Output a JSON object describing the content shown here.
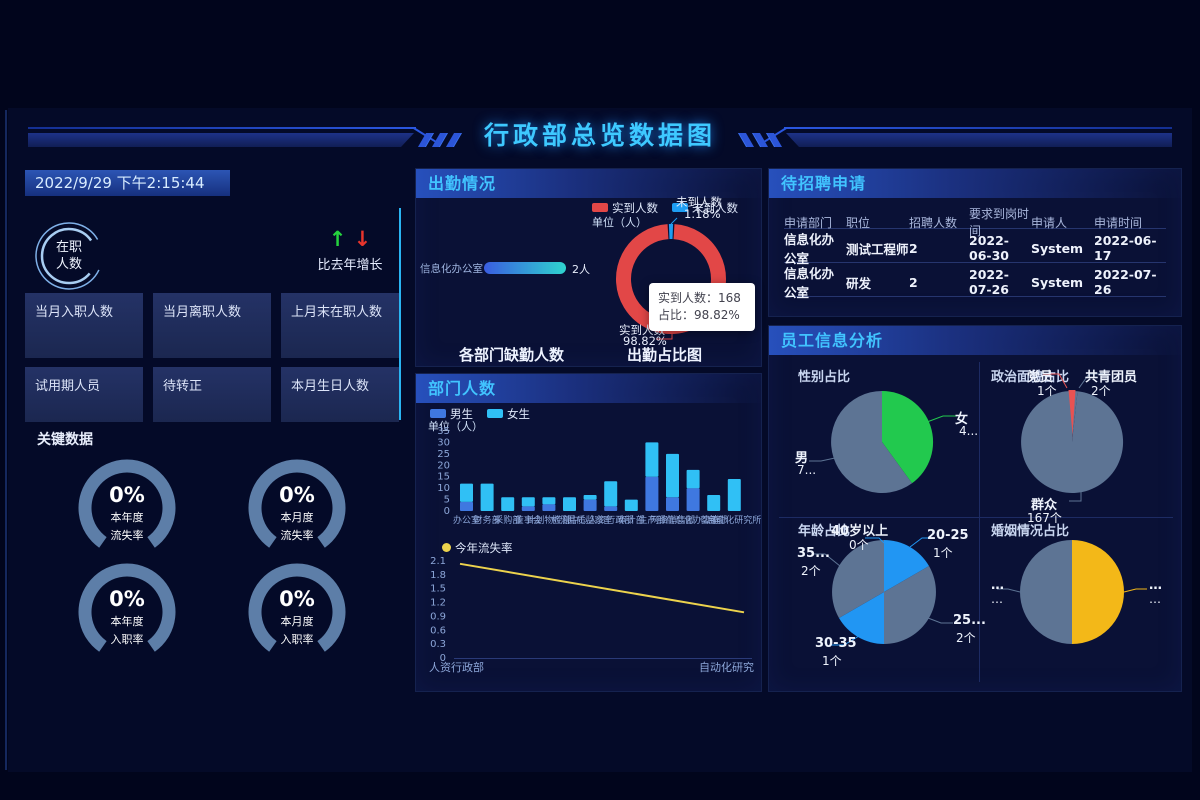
{
  "page": {
    "main_title": "行政部总览数据图"
  },
  "theme": {
    "accent_cyan": "#41c4ff",
    "gauge_arc": "#5d7ea8",
    "axis_text": "#8ca6d8",
    "up_green": "#25d33e",
    "down_red": "#e8342c"
  },
  "left_panel": {
    "datetime": "2022/9/29 下午2:15:44",
    "onduty_label": [
      "在职",
      "人数"
    ],
    "growth": {
      "up_arrow": "↑",
      "down_arrow": "↓",
      "label": "比去年增长"
    },
    "stat_cards": [
      "当月入职人数",
      "当月离职人数",
      "上月末在职人数",
      "试用期人员",
      "待转正",
      "本月生日人数"
    ],
    "key_data_heading": "关键数据",
    "gauges": [
      {
        "value": "0%",
        "period": "本年度",
        "metric": "流失率"
      },
      {
        "value": "0%",
        "period": "本月度",
        "metric": "流失率"
      },
      {
        "value": "0%",
        "period": "本年度",
        "metric": "入职率"
      },
      {
        "value": "0%",
        "period": "本月度",
        "metric": "入职率"
      }
    ]
  },
  "attendance_panel": {
    "title": "出勤情况",
    "unit_label": "单位（人）",
    "legend": [
      {
        "label": "实到人数",
        "color": "#e24747"
      },
      {
        "label": "未到人数",
        "color": "#1e9df2"
      }
    ],
    "bar_dept": "信息化办公室",
    "bar_value": "2人",
    "donut_labels": {
      "absent": "未到人数",
      "absent_pct": "1.18%",
      "present": "实到人数",
      "present_pct": "98.82%"
    },
    "tooltip": {
      "line1": "实到人数：168",
      "line2": "占比：98.82%"
    },
    "caption_left": "各部门缺勤人数",
    "caption_right": "出勤占比图"
  },
  "department_panel": {
    "title": "部门人数",
    "unit_label": "单位（人）",
    "legend": [
      {
        "label": "男生",
        "color": "#3f78e0"
      },
      {
        "label": "女生",
        "color": "#30c0f5"
      }
    ],
    "line_legend": "今年流失率"
  },
  "recruitment_panel": {
    "title": "待招聘申请",
    "columns": [
      "申请部门",
      "职位",
      "招聘人数",
      "要求到岗时间",
      "申请人",
      "申请时间"
    ],
    "rows": [
      [
        "信息化办公室",
        "测试工程师",
        "2",
        "2022-06-30",
        "System",
        "2022-06-17"
      ],
      [
        "信息化办公室",
        "研发",
        "2",
        "2022-07-26",
        "System",
        "2022-07-26"
      ]
    ]
  },
  "employee_panel": {
    "title": "员工信息分析",
    "quadrants": {
      "gender": {
        "title": "性别占比",
        "labels": [
          {
            "name": "女",
            "value": "4..."
          },
          {
            "name": "男",
            "value": "7..."
          }
        ]
      },
      "political": {
        "title": "政治面貌占比",
        "labels": [
          {
            "name": "党员",
            "value": "1个"
          },
          {
            "name": "共青团员",
            "value": "2个"
          },
          {
            "name": "群众",
            "value": "167个"
          }
        ]
      },
      "age": {
        "title": "年龄占比",
        "labels": [
          {
            "name": "40岁以上",
            "value": "0个"
          },
          {
            "name": "20-25",
            "value": "1个"
          },
          {
            "name": "25...",
            "value": "2个"
          },
          {
            "name": "30-35",
            "value": "1个"
          },
          {
            "name": "35...",
            "value": "2个"
          }
        ]
      },
      "marital": {
        "title": "婚姻情况占比",
        "labels": [
          {
            "name": "…",
            "value": "…"
          },
          {
            "name": "…",
            "value": "…"
          }
        ]
      }
    }
  },
  "chart_data": [
    {
      "id": "absence_bar",
      "type": "bar",
      "title": "各部门缺勤人数",
      "unit": "单位（人）",
      "categories": [
        "信息化办公室"
      ],
      "values": [
        2
      ],
      "value_labels": [
        "2人"
      ],
      "xlim": [
        0,
        8
      ],
      "bar_color_start": "#3a5de0",
      "bar_color_end": "#2fd4cf"
    },
    {
      "id": "attendance_donut",
      "type": "pie",
      "title": "出勤占比图",
      "slices": [
        {
          "name": "实到人数",
          "count": 168,
          "pct": 98.82,
          "color": "#e24747"
        },
        {
          "name": "未到人数",
          "pct": 1.18,
          "color": "#1e9df2"
        }
      ]
    },
    {
      "id": "department_stacked_bar",
      "type": "bar",
      "stacked": true,
      "title": "部门人数",
      "unit": "单位（人）",
      "categories": [
        "办公室",
        "财务部",
        "采购部",
        "董事会",
        "计划物控部",
        "检测中心",
        "品质监察室",
        "人资行政部",
        "审计部",
        "生产部",
        "网络销售部",
        "信息化办公室",
        "营销部",
        "自动化研究所"
      ],
      "series": [
        {
          "name": "男生",
          "color": "#3f78e0",
          "values": [
            4,
            0,
            0,
            2,
            3,
            0,
            5,
            2,
            0,
            15,
            6,
            10,
            0,
            0
          ]
        },
        {
          "name": "女生",
          "color": "#30c0f5",
          "values": [
            8,
            12,
            6,
            4,
            3,
            6,
            2,
            11,
            5,
            15,
            19,
            8,
            7,
            14
          ]
        }
      ],
      "ylim": [
        0,
        35
      ],
      "ytick_step": 5
    },
    {
      "id": "attrition_line",
      "type": "line",
      "title": "今年流失率",
      "color": "#edd34d",
      "x": [
        "人资行政部",
        "自动化研究"
      ],
      "values": [
        2.04,
        0.99
      ],
      "ylim": [
        0,
        2.1
      ],
      "ytick_step": 0.3
    },
    {
      "id": "gender_pie",
      "type": "pie",
      "title": "性别占比",
      "slices": [
        {
          "name": "女",
          "label": "4...",
          "share": 0.4,
          "color": "#22c94e"
        },
        {
          "name": "男",
          "label": "7...",
          "share": 0.6,
          "color": "#5d7494"
        }
      ]
    },
    {
      "id": "political_pie",
      "type": "pie",
      "title": "政治面貌占比",
      "slices": [
        {
          "name": "党员",
          "count": 1,
          "color": "#e85252"
        },
        {
          "name": "共青团员",
          "count": 2,
          "color": "#5d7494"
        },
        {
          "name": "群众",
          "count": 167,
          "color": "#5d7494"
        }
      ]
    },
    {
      "id": "age_pie",
      "type": "pie",
      "title": "年龄占比",
      "slices": [
        {
          "name": "20-25",
          "count": 1,
          "color": "#2196f3"
        },
        {
          "name": "25-30",
          "count": 2,
          "color": "#5d7494"
        },
        {
          "name": "30-35",
          "count": 1,
          "color": "#2196f3"
        },
        {
          "name": "35-40",
          "count": 2,
          "color": "#5d7494"
        },
        {
          "name": "40岁以上",
          "count": 0,
          "color": "#5d7494"
        }
      ]
    },
    {
      "id": "marital_pie",
      "type": "pie",
      "title": "婚姻情况占比",
      "slices": [
        {
          "name": "…",
          "share": 0.5,
          "color": "#f3b818"
        },
        {
          "name": "…",
          "share": 0.5,
          "color": "#5d7494"
        }
      ]
    }
  ]
}
